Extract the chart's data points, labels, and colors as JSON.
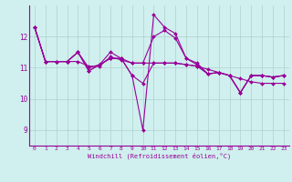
{
  "xlabel": "Windchill (Refroidissement éolien,°C)",
  "background_color": "#cff0ee",
  "line_color": "#990099",
  "grid_color": "#b0d0cc",
  "xlim": [
    -0.5,
    23.5
  ],
  "ylim": [
    8.5,
    13.0
  ],
  "yticks": [
    9,
    10,
    11,
    12
  ],
  "xticks": [
    0,
    1,
    2,
    3,
    4,
    5,
    6,
    7,
    8,
    9,
    10,
    11,
    12,
    13,
    14,
    15,
    16,
    17,
    18,
    19,
    20,
    21,
    22,
    23
  ],
  "series": [
    [
      12.3,
      11.2,
      11.2,
      11.2,
      11.5,
      10.9,
      11.1,
      11.5,
      11.3,
      10.75,
      9.0,
      12.7,
      12.3,
      12.1,
      11.3,
      11.15,
      10.8,
      10.85,
      10.75,
      10.2,
      10.75,
      10.75,
      10.7,
      10.75
    ],
    [
      12.3,
      11.2,
      11.2,
      11.2,
      11.2,
      11.05,
      11.05,
      11.35,
      11.25,
      11.15,
      11.15,
      11.15,
      11.15,
      11.15,
      11.1,
      11.05,
      10.95,
      10.85,
      10.75,
      10.65,
      10.55,
      10.5,
      10.5,
      10.5
    ],
    [
      12.3,
      11.2,
      11.2,
      11.2,
      11.5,
      10.9,
      11.1,
      11.3,
      11.3,
      10.75,
      10.5,
      11.15,
      11.15,
      11.15,
      11.1,
      11.05,
      10.8,
      10.85,
      10.75,
      10.2,
      10.75,
      10.75,
      10.7,
      10.75
    ],
    [
      12.3,
      11.2,
      11.2,
      11.2,
      11.5,
      11.0,
      11.1,
      11.3,
      11.3,
      11.15,
      11.15,
      12.0,
      12.2,
      11.95,
      11.3,
      11.1,
      10.8,
      10.85,
      10.75,
      10.2,
      10.75,
      10.75,
      10.7,
      10.75
    ]
  ]
}
